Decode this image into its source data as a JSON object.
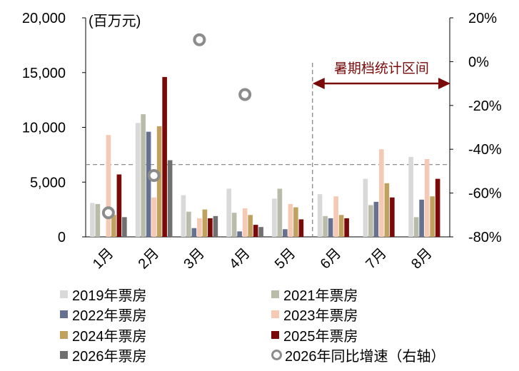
{
  "chart_data": {
    "type": "bar",
    "categories": [
      "1月",
      "2月",
      "3月",
      "4月",
      "5月",
      "6月",
      "7月",
      "8月"
    ],
    "series": [
      {
        "name": "2019年票房",
        "color": "#d9d9d9",
        "values": [
          3100,
          10400,
          3800,
          4400,
          3500,
          3900,
          5300,
          7300
        ]
      },
      {
        "name": "2021年票房",
        "color": "#b8bca8",
        "values": [
          3000,
          11200,
          2300,
          2200,
          4400,
          1900,
          2900,
          1800
        ]
      },
      {
        "name": "2022年票房",
        "color": "#66708f",
        "values": [
          null,
          9600,
          800,
          500,
          700,
          1700,
          3200,
          3400
        ]
      },
      {
        "name": "2023年票房",
        "color": "#f5c9b4",
        "values": [
          9300,
          3600,
          1700,
          2600,
          3000,
          3700,
          8000,
          7100
        ]
      },
      {
        "name": "2024年票房",
        "color": "#c0a25e",
        "values": [
          2000,
          10100,
          2500,
          2000,
          2700,
          2000,
          4900,
          3700
        ]
      },
      {
        "name": "2025年票房",
        "color": "#7a0a0a",
        "values": [
          5700,
          14600,
          1700,
          1100,
          1600,
          1700,
          3600,
          5300
        ]
      },
      {
        "name": "2026年票房",
        "color": "#707070",
        "values": [
          1800,
          7000,
          1900,
          900,
          null,
          null,
          null,
          null
        ]
      }
    ],
    "growth": {
      "name": "2026年同比增速（右轴）",
      "axis": "right",
      "values": [
        -69,
        -52,
        10,
        -15,
        null,
        null,
        null,
        null
      ]
    },
    "unit_left": "(百万元)",
    "y_left": {
      "min": 0,
      "max": 20000,
      "ticks": [
        "0",
        "5,000",
        "10,000",
        "15,000",
        "20,000"
      ]
    },
    "y_right": {
      "min": -80,
      "max": 20,
      "ticks": [
        "-80%",
        "-60%",
        "-40%",
        "-20%",
        "0%",
        "20%"
      ]
    },
    "reference_line_right": -47,
    "annotation": {
      "text": "暑期档统计区间",
      "from_category": "6月",
      "to_category": "8月",
      "color": "#7a0a0a"
    },
    "legend_position": "bottom"
  }
}
